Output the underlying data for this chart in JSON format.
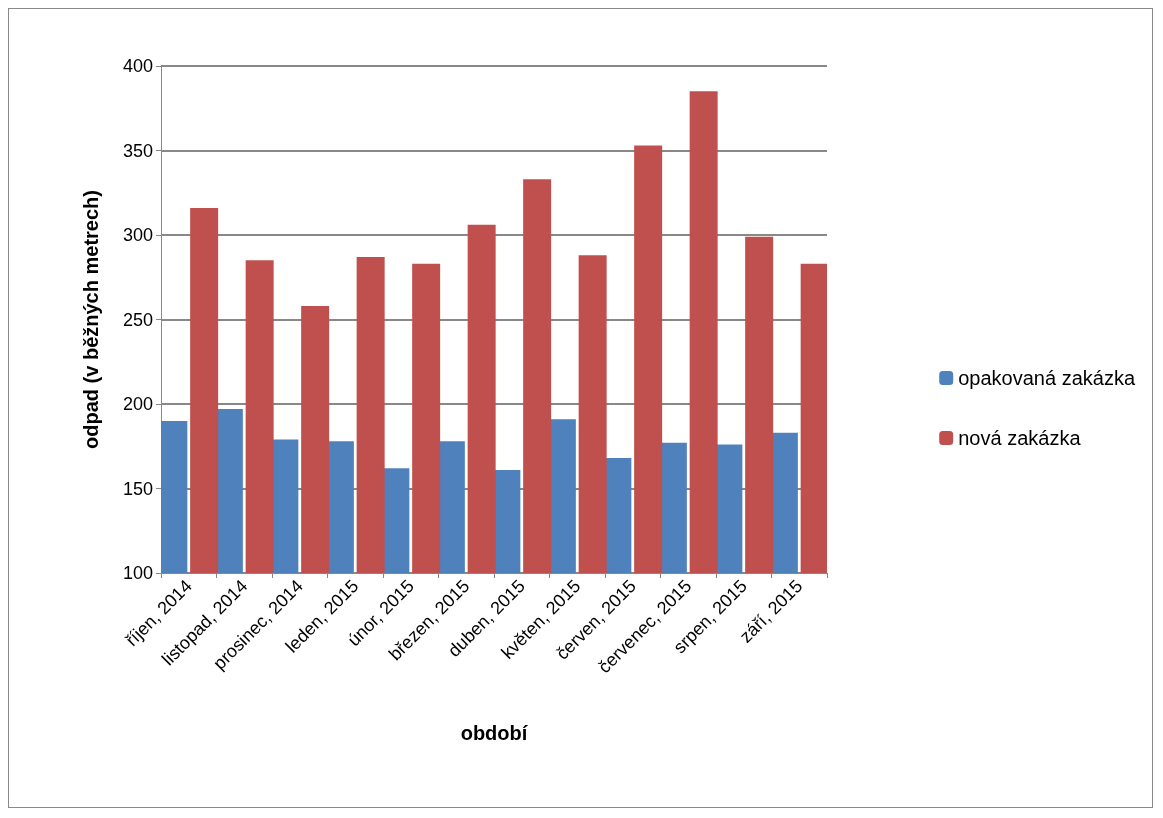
{
  "chart_data": {
    "type": "bar",
    "xlabel": "období",
    "ylabel": "odpad (v běžných metrech)",
    "categories": [
      "říjen, 2014",
      "listopad, 2014",
      "prosinec, 2014",
      "leden, 2015",
      "únor, 2015",
      "březen, 2015",
      "duben, 2015",
      "květen, 2015",
      "červen, 2015",
      "červenec, 2015",
      "srpen, 2015",
      "září, 2015"
    ],
    "series": [
      {
        "name": "opakovaná zakázka",
        "color": "#4f81bd",
        "values": [
          190,
          197,
          179,
          178,
          162,
          178,
          161,
          191,
          168,
          177,
          176,
          183
        ]
      },
      {
        "name": "nová zakázka",
        "color": "#c0504d",
        "values": [
          316,
          285,
          258,
          287,
          283,
          306,
          333,
          288,
          353,
          385,
          299,
          283
        ]
      }
    ],
    "ylim": [
      100,
      400
    ],
    "yticks": [
      100,
      150,
      200,
      250,
      300,
      350,
      400
    ],
    "grid": "y",
    "legend": "right"
  }
}
